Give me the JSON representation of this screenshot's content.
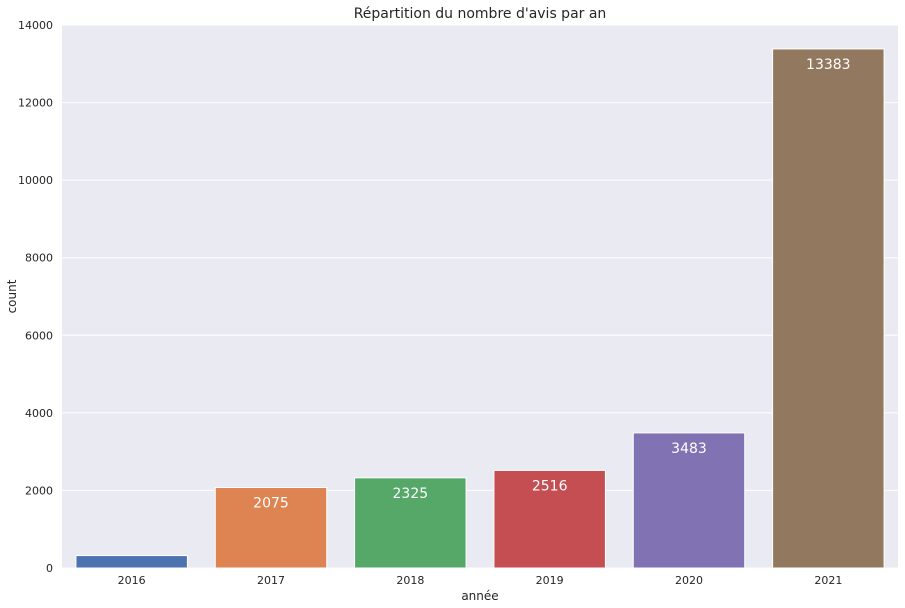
{
  "chart_data": {
    "type": "bar",
    "title": "Répartition du nombre d'avis par an",
    "xlabel": "année",
    "ylabel": "count",
    "categories": [
      "2016",
      "2017",
      "2018",
      "2019",
      "2020",
      "2021"
    ],
    "values": [
      320,
      2075,
      2325,
      2516,
      3483,
      13383
    ],
    "value_labels": [
      "",
      "2075",
      "2325",
      "2516",
      "3483",
      "13383"
    ],
    "ylim": [
      0,
      14000
    ],
    "yticks": [
      "0",
      "2000",
      "4000",
      "6000",
      "8000",
      "10000",
      "12000",
      "14000"
    ],
    "colors": [
      "#4c72b0",
      "#dd8452",
      "#55a868",
      "#c44e52",
      "#8172b3",
      "#937860"
    ],
    "background": "#eaeaf2",
    "grid": true
  }
}
